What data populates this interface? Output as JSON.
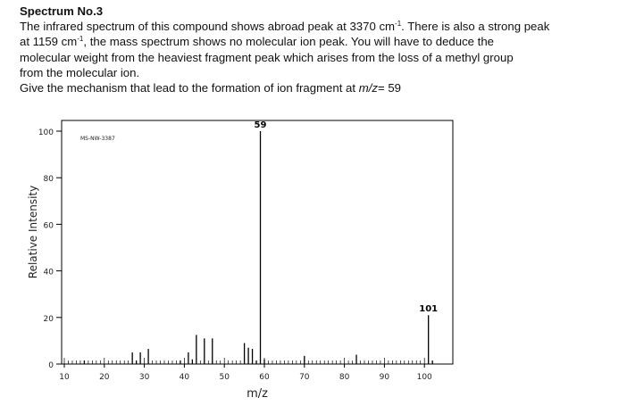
{
  "document": {
    "title": "Spectrum No.3",
    "para_line1_a": "The infrared spectrum of this compound shows abroad peak at 3370 cm",
    "para_line1_sup": "-1",
    "para_line1_b": ". There is also a strong peak",
    "para_line2_a": "at 1159 cm",
    "para_line2_sup": "-1",
    "para_line2_b": ", the mass spectrum shows no molecular ion peak. You will have to deduce the",
    "para_line3": "molecular weight from the heaviest fragment peak which arises from the loss of a methyl group",
    "para_line4": "from the molecular ion.",
    "question_a": "Give the mechanism that lead to the formation of ion fragment at ",
    "question_em": "m/z",
    "question_b": "= 59"
  },
  "chart_data": {
    "type": "bar",
    "watermark": "MS-NW-3387",
    "xlabel": "m/z",
    "ylabel": "Relative Intensity",
    "xlim": [
      10,
      102
    ],
    "ylim": [
      0,
      100
    ],
    "xticks": [
      10,
      20,
      30,
      40,
      50,
      60,
      70,
      80,
      90,
      100
    ],
    "yticks": [
      0,
      20,
      40,
      60,
      80,
      100
    ],
    "peaks": [
      {
        "mz": 15,
        "intensity": 1.5
      },
      {
        "mz": 27,
        "intensity": 5
      },
      {
        "mz": 28,
        "intensity": 1.5
      },
      {
        "mz": 29,
        "intensity": 5
      },
      {
        "mz": 31,
        "intensity": 6.5
      },
      {
        "mz": 39,
        "intensity": 1.5
      },
      {
        "mz": 41,
        "intensity": 5
      },
      {
        "mz": 42,
        "intensity": 2
      },
      {
        "mz": 43,
        "intensity": 12.5
      },
      {
        "mz": 45,
        "intensity": 11
      },
      {
        "mz": 47,
        "intensity": 11
      },
      {
        "mz": 55,
        "intensity": 9
      },
      {
        "mz": 56,
        "intensity": 7
      },
      {
        "mz": 57,
        "intensity": 6.5
      },
      {
        "mz": 58,
        "intensity": 1.5
      },
      {
        "mz": 59,
        "intensity": 100,
        "label": "59"
      },
      {
        "mz": 60,
        "intensity": 2
      },
      {
        "mz": 70,
        "intensity": 3.5
      },
      {
        "mz": 83,
        "intensity": 4
      },
      {
        "mz": 101,
        "intensity": 21,
        "label": "101"
      },
      {
        "mz": 102,
        "intensity": 1.5
      }
    ]
  }
}
